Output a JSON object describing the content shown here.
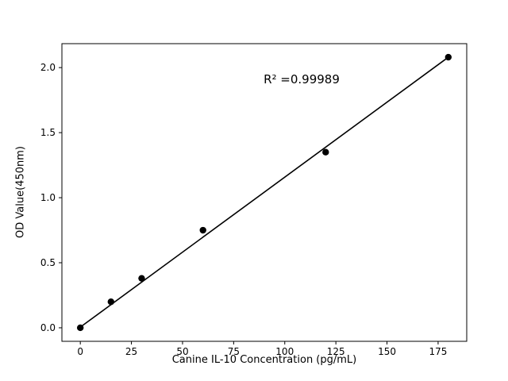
{
  "chart_data": {
    "type": "scatter",
    "title": "",
    "xlabel": "Canine IL-10 Concentration (pg/mL)",
    "ylabel": "OD Value(450nm)",
    "annotation": "R² =0.99989",
    "x": [
      0,
      15,
      30,
      60,
      120,
      180
    ],
    "y": [
      0.0,
      0.2,
      0.38,
      0.75,
      1.35,
      2.08
    ],
    "fit_line": {
      "x": [
        0,
        180
      ],
      "y": [
        0.005,
        2.08
      ]
    },
    "xlim": [
      -9,
      189
    ],
    "ylim": [
      -0.104,
      2.184
    ],
    "xticks": {
      "values": [
        0,
        25,
        50,
        75,
        100,
        125,
        150,
        175
      ],
      "labels": [
        "0",
        "25",
        "50",
        "75",
        "100",
        "125",
        "150",
        "175"
      ]
    },
    "yticks": {
      "values": [
        0.0,
        0.5,
        1.0,
        1.5,
        2.0
      ],
      "labels": [
        "0.0",
        "0.5",
        "1.0",
        "1.5",
        "2.0"
      ]
    },
    "marker_color": "#000000",
    "line_color": "#000000",
    "axis_color": "#000000",
    "background_color": "#ffffff",
    "grid": "off",
    "legend": "none"
  }
}
